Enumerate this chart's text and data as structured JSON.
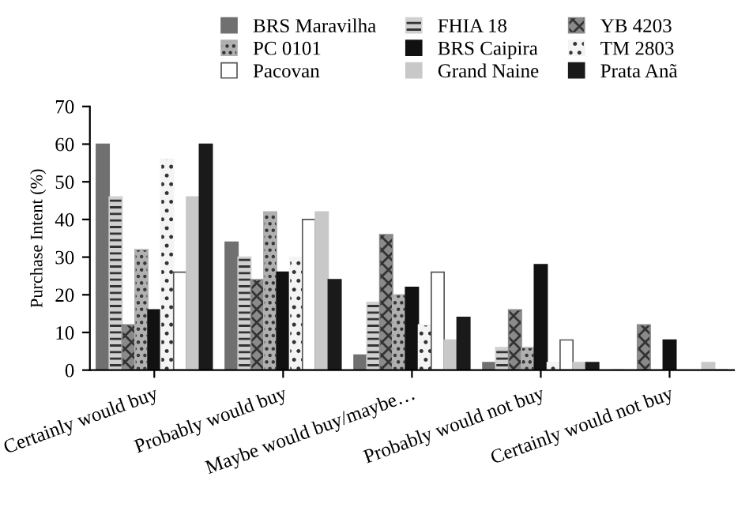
{
  "chart_data": {
    "type": "bar",
    "ylabel": "Purchase Intent (%)",
    "categories": [
      "Certainly would buy",
      "Probably would buy",
      "Maybe would buy/maybe…",
      "Probably would not buy",
      "Certainly would not buy"
    ],
    "series": [
      {
        "name": "BRS Maravilha",
        "color": "#707070",
        "values": [
          60,
          34,
          4,
          2,
          0
        ]
      },
      {
        "name": "FHIA 18",
        "color": "#d0d0d0",
        "values": [
          46,
          30,
          18,
          6,
          0
        ]
      },
      {
        "name": "YB 4203",
        "color": "#8a8a8a",
        "values": [
          12,
          24,
          36,
          16,
          12
        ]
      },
      {
        "name": "PC 0101",
        "color": "#b0b0b0",
        "values": [
          32,
          42,
          20,
          6,
          0
        ]
      },
      {
        "name": "BRS Caipira",
        "color": "#111111",
        "values": [
          16,
          26,
          22,
          28,
          8
        ]
      },
      {
        "name": "TM 2803",
        "color": "#f4f4f4",
        "values": [
          56,
          30,
          12,
          2,
          0
        ]
      },
      {
        "name": "Pacovan",
        "color": "#ffffff",
        "values": [
          26,
          40,
          26,
          8,
          0
        ]
      },
      {
        "name": "Grand Naine",
        "color": "#c8c8c8",
        "values": [
          46,
          42,
          8,
          2,
          2
        ]
      },
      {
        "name": "Prata Anã",
        "color": "#1a1a1a",
        "values": [
          60,
          24,
          14,
          2,
          0
        ]
      }
    ],
    "ylim": [
      0,
      70
    ],
    "yticks": [
      0,
      10,
      20,
      30,
      40,
      50,
      60,
      70
    ],
    "grid": false,
    "legend": "top"
  }
}
